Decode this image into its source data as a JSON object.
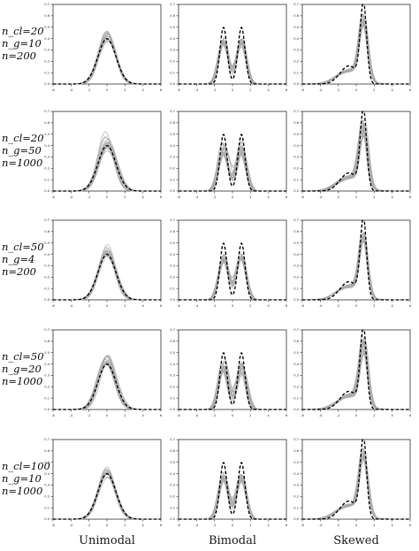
{
  "chart_data": {
    "type": "line",
    "columns": [
      "Unimodal",
      "Bimodal",
      "Skewed"
    ],
    "rows": [
      {
        "labels": [
          "n_cl=20",
          "n_g=10",
          "n=200"
        ]
      },
      {
        "labels": [
          "n_cl=20",
          "n_g=50",
          "n=1000"
        ]
      },
      {
        "labels": [
          "n_cl=50",
          "n_g=4",
          "n=200"
        ]
      },
      {
        "labels": [
          "n_cl=50",
          "n_g=20",
          "n=1000"
        ]
      },
      {
        "labels": [
          "n_cl=100",
          "n_g=10",
          "n=1000"
        ]
      }
    ],
    "xlim": [
      -6,
      6
    ],
    "ylim": [
      0,
      0.7
    ],
    "xticks": [
      "-6",
      "-4",
      "-2",
      "0",
      "2",
      "4",
      "6"
    ],
    "yticks": [
      "0.0",
      "0.1",
      "0.2",
      "0.3",
      "0.4",
      "0.5",
      "0.6",
      "0.7"
    ],
    "true_densities": {
      "Unimodal": {
        "components": [
          {
            "w": 1.0,
            "mu": 0.0,
            "sd": 1.0
          }
        ]
      },
      "Bimodal": {
        "components": [
          {
            "w": 0.5,
            "mu": -1.0,
            "sd": 0.4
          },
          {
            "w": 0.5,
            "mu": 1.0,
            "sd": 0.4
          }
        ]
      },
      "Skewed": {
        "components": [
          {
            "w": 0.4,
            "mu": -0.8,
            "sd": 1.0
          },
          {
            "w": 0.6,
            "mu": 0.8,
            "sd": 0.35
          }
        ]
      }
    },
    "series": [
      {
        "style": "dashed",
        "color": "#000000"
      },
      {
        "style": "solid",
        "color": "#aaaaaa"
      }
    ]
  }
}
